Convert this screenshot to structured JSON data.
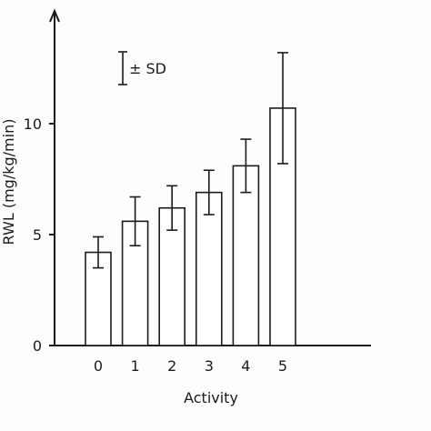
{
  "chart_data": {
    "type": "bar",
    "title": "",
    "xlabel": "Activity",
    "ylabel": "RWL (mg/kg/min)",
    "categories": [
      "0",
      "1",
      "2",
      "3",
      "4",
      "5"
    ],
    "values": [
      4.2,
      5.6,
      6.2,
      6.9,
      8.1,
      10.7
    ],
    "sd": [
      0.7,
      1.1,
      1.0,
      1.0,
      1.2,
      2.5
    ],
    "ylim": [
      0,
      14
    ],
    "yticks": [
      0,
      5,
      10
    ],
    "ytick_labels": [
      "0",
      "5",
      "10"
    ],
    "legend": {
      "label": "± SD",
      "placement": "top-left"
    },
    "grid": false,
    "colors": {
      "ink": "#1b1b1b",
      "bar_fill": "#ffffff",
      "background": "#fdfdfb"
    }
  }
}
